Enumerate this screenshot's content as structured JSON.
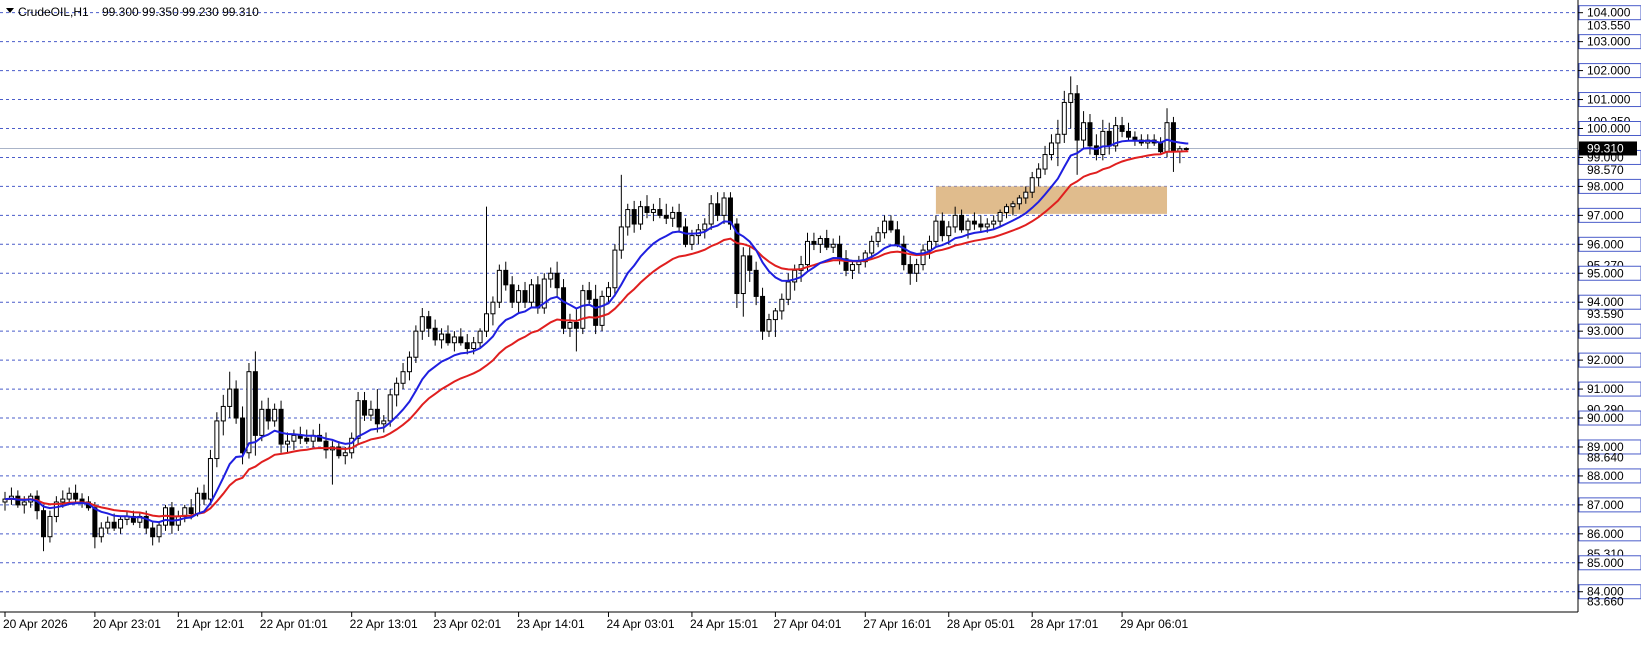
{
  "window": {
    "symbol_timeframe": "CrudeOIL,H1",
    "ohlc_readout": "99.300 99.350 99.230 99.310"
  },
  "colors": {
    "background": "#ffffff",
    "grid": "#4a5cc9",
    "ma_fast": "#1f1fe0",
    "ma_slow": "#e01f1f",
    "bid_line": "#aab4c8",
    "price_tag_bg": "#000000",
    "price_tag_text": "#ffffff",
    "zone_fill": "#deb887",
    "candle_bull": "#ffffff",
    "candle_bear": "#000000",
    "candle_outline": "#000000"
  },
  "chart_data": {
    "type": "candlestick",
    "symbol": "CrudeOIL",
    "timeframe": "H1",
    "current_price": "99.310",
    "y_range": [
      83.3,
      104.3
    ],
    "x_range_bars": [
      0,
      228
    ],
    "grid": "horizontal dashed at every 1.000",
    "price_labels": [
      {
        "value": 104.0,
        "text": "104.000",
        "boxed": true
      },
      {
        "value": 103.55,
        "text": "103.550",
        "boxed": false
      },
      {
        "value": 103.0,
        "text": "103.000",
        "boxed": true
      },
      {
        "value": 102.0,
        "text": "102.000",
        "boxed": true
      },
      {
        "value": 101.0,
        "text": "101.000",
        "boxed": true
      },
      {
        "value": 100.25,
        "text": "100.250",
        "boxed": false
      },
      {
        "value": 100.0,
        "text": "100.000",
        "boxed": true
      },
      {
        "value": 99.0,
        "text": "99.000",
        "boxed": true
      },
      {
        "value": 98.57,
        "text": "98.570",
        "boxed": false
      },
      {
        "value": 98.0,
        "text": "98.000",
        "boxed": true
      },
      {
        "value": 97.0,
        "text": "97.000",
        "boxed": true
      },
      {
        "value": 96.0,
        "text": "96.000",
        "boxed": true
      },
      {
        "value": 95.27,
        "text": "95.270",
        "boxed": false
      },
      {
        "value": 95.0,
        "text": "95.000",
        "boxed": true
      },
      {
        "value": 94.0,
        "text": "94.000",
        "boxed": true
      },
      {
        "value": 93.59,
        "text": "93.590",
        "boxed": false
      },
      {
        "value": 93.0,
        "text": "93.000",
        "boxed": true
      },
      {
        "value": 92.0,
        "text": "92.000",
        "boxed": true
      },
      {
        "value": 91.0,
        "text": "91.000",
        "boxed": true
      },
      {
        "value": 90.29,
        "text": "90.290",
        "boxed": false
      },
      {
        "value": 90.0,
        "text": "90.000",
        "boxed": true
      },
      {
        "value": 89.0,
        "text": "89.000",
        "boxed": true
      },
      {
        "value": 88.64,
        "text": "88.640",
        "boxed": false
      },
      {
        "value": 88.0,
        "text": "88.000",
        "boxed": true
      },
      {
        "value": 87.0,
        "text": "87.000",
        "boxed": true
      },
      {
        "value": 86.0,
        "text": "86.000",
        "boxed": true
      },
      {
        "value": 85.31,
        "text": "85.310",
        "boxed": false
      },
      {
        "value": 85.0,
        "text": "85.000",
        "boxed": true
      },
      {
        "value": 84.0,
        "text": "84.000",
        "boxed": true
      },
      {
        "value": 83.66,
        "text": "83.660",
        "boxed": false
      }
    ],
    "time_labels": [
      {
        "bar": 0,
        "text": "20 Apr 2026"
      },
      {
        "bar": 14,
        "text": "20 Apr 23:01"
      },
      {
        "bar": 27,
        "text": "21 Apr 12:01"
      },
      {
        "bar": 40,
        "text": "22 Apr 01:01"
      },
      {
        "bar": 54,
        "text": "22 Apr 13:01"
      },
      {
        "bar": 67,
        "text": "23 Apr 02:01"
      },
      {
        "bar": 80,
        "text": "23 Apr 14:01"
      },
      {
        "bar": 94,
        "text": "24 Apr 03:01"
      },
      {
        "bar": 107,
        "text": "24 Apr 15:01"
      },
      {
        "bar": 120,
        "text": "27 Apr 04:01"
      },
      {
        "bar": 134,
        "text": "27 Apr 16:01"
      },
      {
        "bar": 147,
        "text": "28 Apr 05:01"
      },
      {
        "bar": 160,
        "text": "28 Apr 17:01"
      },
      {
        "bar": 174,
        "text": "29 Apr 06:01"
      }
    ],
    "demand_zone": {
      "bar_start": 145,
      "bar_end": 181,
      "price_low": 97.05,
      "price_high": 98.0
    },
    "candles": [
      [
        87.1,
        87.45,
        86.8,
        87.2
      ],
      [
        87.2,
        87.6,
        87.0,
        87.3
      ],
      [
        87.3,
        87.5,
        86.9,
        87.0
      ],
      [
        87.0,
        87.3,
        86.7,
        87.1
      ],
      [
        87.1,
        87.4,
        86.9,
        87.3
      ],
      [
        87.3,
        87.5,
        86.5,
        86.8
      ],
      [
        86.8,
        87.0,
        85.4,
        85.9
      ],
      [
        85.9,
        86.8,
        85.7,
        86.6
      ],
      [
        86.6,
        87.3,
        86.4,
        87.1
      ],
      [
        87.1,
        87.5,
        86.9,
        87.2
      ],
      [
        87.2,
        87.6,
        87.0,
        87.4
      ],
      [
        87.4,
        87.7,
        87.1,
        87.2
      ],
      [
        87.2,
        87.4,
        86.9,
        87.1
      ],
      [
        87.1,
        87.3,
        86.8,
        86.9
      ],
      [
        86.9,
        87.1,
        85.5,
        85.9
      ],
      [
        85.9,
        86.4,
        85.7,
        86.2
      ],
      [
        86.2,
        86.6,
        86.0,
        86.4
      ],
      [
        86.4,
        86.7,
        86.1,
        86.2
      ],
      [
        86.2,
        86.6,
        86.0,
        86.5
      ],
      [
        86.5,
        86.8,
        86.3,
        86.6
      ],
      [
        86.6,
        86.8,
        86.3,
        86.4
      ],
      [
        86.4,
        86.7,
        86.2,
        86.6
      ],
      [
        86.6,
        86.8,
        86.0,
        86.2
      ],
      [
        86.2,
        86.4,
        85.6,
        85.9
      ],
      [
        85.9,
        86.4,
        85.7,
        86.3
      ],
      [
        86.3,
        87.0,
        86.1,
        86.9
      ],
      [
        86.9,
        87.1,
        86.0,
        86.3
      ],
      [
        86.3,
        86.8,
        86.1,
        86.6
      ],
      [
        86.6,
        87.0,
        86.4,
        86.9
      ],
      [
        86.9,
        87.2,
        86.5,
        86.7
      ],
      [
        86.7,
        87.6,
        86.6,
        87.4
      ],
      [
        87.4,
        87.7,
        87.0,
        87.2
      ],
      [
        87.2,
        88.9,
        87.0,
        88.6
      ],
      [
        88.6,
        90.2,
        88.3,
        89.9
      ],
      [
        89.9,
        90.8,
        89.4,
        90.4
      ],
      [
        90.4,
        91.6,
        90.0,
        91.0
      ],
      [
        91.0,
        91.3,
        89.8,
        90.0
      ],
      [
        90.0,
        90.4,
        88.4,
        88.8
      ],
      [
        88.8,
        91.9,
        88.6,
        91.6
      ],
      [
        91.6,
        92.3,
        88.7,
        89.4
      ],
      [
        89.4,
        90.6,
        89.2,
        90.3
      ],
      [
        90.3,
        90.7,
        89.6,
        89.9
      ],
      [
        89.9,
        90.5,
        89.7,
        90.3
      ],
      [
        90.3,
        90.6,
        88.8,
        89.1
      ],
      [
        89.1,
        89.5,
        88.8,
        89.2
      ],
      [
        89.2,
        89.6,
        88.9,
        89.4
      ],
      [
        89.4,
        89.7,
        89.1,
        89.3
      ],
      [
        89.3,
        89.6,
        89.1,
        89.2
      ],
      [
        89.2,
        89.6,
        89.0,
        89.4
      ],
      [
        89.4,
        89.8,
        89.2,
        89.2
      ],
      [
        89.2,
        89.5,
        88.6,
        88.9
      ],
      [
        88.9,
        89.2,
        87.7,
        89.0
      ],
      [
        89.0,
        89.2,
        88.6,
        88.7
      ],
      [
        88.7,
        89.0,
        88.4,
        88.8
      ],
      [
        88.8,
        89.5,
        88.6,
        89.3
      ],
      [
        89.3,
        90.9,
        89.1,
        90.6
      ],
      [
        90.6,
        90.9,
        89.9,
        90.1
      ],
      [
        90.1,
        90.6,
        89.9,
        90.3
      ],
      [
        90.3,
        91.0,
        89.5,
        89.8
      ],
      [
        89.8,
        90.1,
        89.5,
        89.9
      ],
      [
        89.9,
        91.0,
        89.7,
        90.8
      ],
      [
        90.8,
        91.4,
        90.4,
        91.2
      ],
      [
        91.2,
        91.9,
        91.0,
        91.6
      ],
      [
        91.6,
        92.3,
        91.3,
        92.1
      ],
      [
        92.1,
        93.2,
        91.9,
        93.0
      ],
      [
        93.0,
        93.8,
        92.7,
        93.5
      ],
      [
        93.5,
        93.7,
        92.8,
        93.1
      ],
      [
        93.1,
        93.4,
        92.5,
        92.7
      ],
      [
        92.7,
        93.1,
        92.4,
        92.9
      ],
      [
        92.9,
        93.2,
        92.5,
        92.6
      ],
      [
        92.6,
        93.0,
        92.3,
        92.8
      ],
      [
        92.8,
        93.1,
        92.5,
        92.6
      ],
      [
        92.6,
        92.9,
        92.2,
        92.4
      ],
      [
        92.4,
        92.8,
        92.2,
        92.6
      ],
      [
        92.6,
        93.1,
        92.4,
        93.0
      ],
      [
        93.0,
        97.3,
        92.8,
        93.6
      ],
      [
        93.6,
        94.2,
        93.2,
        94.0
      ],
      [
        94.0,
        95.3,
        93.8,
        95.1
      ],
      [
        95.1,
        95.4,
        94.4,
        94.6
      ],
      [
        94.6,
        94.9,
        93.8,
        94.0
      ],
      [
        94.0,
        94.6,
        93.6,
        94.4
      ],
      [
        94.4,
        94.7,
        93.8,
        94.0
      ],
      [
        94.0,
        94.8,
        93.8,
        94.6
      ],
      [
        94.6,
        94.9,
        93.6,
        93.8
      ],
      [
        93.8,
        95.0,
        93.6,
        94.8
      ],
      [
        94.8,
        95.2,
        94.5,
        95.0
      ],
      [
        95.0,
        95.4,
        94.2,
        94.5
      ],
      [
        94.5,
        94.8,
        92.9,
        93.1
      ],
      [
        93.1,
        93.6,
        92.8,
        93.3
      ],
      [
        93.3,
        93.8,
        92.3,
        93.1
      ],
      [
        93.1,
        94.6,
        92.9,
        94.4
      ],
      [
        94.4,
        94.7,
        93.9,
        94.1
      ],
      [
        94.1,
        94.6,
        92.9,
        93.2
      ],
      [
        93.2,
        94.4,
        93.0,
        94.2
      ],
      [
        94.2,
        94.7,
        94.0,
        94.5
      ],
      [
        94.5,
        96.0,
        94.2,
        95.8
      ],
      [
        95.8,
        98.4,
        95.5,
        96.6
      ],
      [
        96.6,
        97.4,
        96.3,
        97.2
      ],
      [
        97.2,
        97.5,
        96.4,
        96.7
      ],
      [
        96.7,
        97.5,
        96.5,
        97.3
      ],
      [
        97.3,
        97.7,
        96.9,
        97.1
      ],
      [
        97.1,
        97.4,
        96.8,
        97.2
      ],
      [
        97.2,
        97.6,
        96.9,
        97.0
      ],
      [
        97.0,
        97.4,
        96.7,
        96.9
      ],
      [
        96.9,
        97.3,
        96.6,
        97.1
      ],
      [
        97.1,
        97.4,
        96.4,
        96.6
      ],
      [
        96.6,
        96.9,
        95.9,
        96.0
      ],
      [
        96.0,
        96.5,
        95.8,
        96.3
      ],
      [
        96.3,
        96.7,
        96.0,
        96.5
      ],
      [
        96.5,
        96.9,
        96.2,
        96.7
      ],
      [
        96.7,
        97.7,
        96.5,
        97.4
      ],
      [
        97.4,
        97.8,
        96.8,
        97.0
      ],
      [
        97.0,
        97.8,
        96.7,
        97.6
      ],
      [
        97.6,
        97.8,
        96.5,
        96.7
      ],
      [
        96.7,
        96.9,
        93.8,
        94.3
      ],
      [
        94.3,
        95.9,
        93.5,
        95.6
      ],
      [
        95.6,
        95.9,
        94.7,
        95.1
      ],
      [
        95.1,
        95.4,
        93.9,
        94.2
      ],
      [
        94.2,
        94.5,
        92.7,
        93.0
      ],
      [
        93.0,
        93.6,
        92.8,
        93.4
      ],
      [
        93.4,
        93.8,
        92.8,
        93.7
      ],
      [
        93.7,
        94.3,
        93.4,
        94.1
      ],
      [
        94.1,
        95.0,
        93.9,
        94.7
      ],
      [
        94.7,
        95.3,
        94.4,
        95.1
      ],
      [
        95.1,
        95.6,
        94.7,
        95.3
      ],
      [
        95.3,
        96.4,
        95.1,
        96.1
      ],
      [
        96.1,
        96.4,
        95.8,
        96.0
      ],
      [
        96.0,
        96.3,
        95.7,
        96.2
      ],
      [
        96.2,
        96.5,
        95.8,
        95.9
      ],
      [
        95.9,
        96.2,
        95.7,
        96.0
      ],
      [
        96.0,
        96.3,
        95.3,
        95.5
      ],
      [
        95.5,
        95.8,
        94.9,
        95.1
      ],
      [
        95.1,
        95.4,
        94.8,
        95.3
      ],
      [
        95.3,
        95.6,
        95.0,
        95.4
      ],
      [
        95.4,
        95.8,
        95.2,
        95.7
      ],
      [
        95.7,
        96.3,
        95.5,
        96.1
      ],
      [
        96.1,
        96.6,
        95.9,
        96.4
      ],
      [
        96.4,
        97.0,
        96.2,
        96.8
      ],
      [
        96.8,
        97.0,
        96.4,
        96.5
      ],
      [
        96.5,
        96.8,
        95.9,
        96.0
      ],
      [
        96.0,
        96.3,
        95.1,
        95.3
      ],
      [
        95.3,
        95.6,
        94.6,
        95.0
      ],
      [
        95.0,
        95.5,
        94.7,
        95.3
      ],
      [
        95.3,
        96.0,
        95.1,
        95.8
      ],
      [
        95.8,
        96.3,
        95.5,
        96.1
      ],
      [
        96.1,
        97.0,
        95.9,
        96.8
      ],
      [
        96.8,
        97.1,
        96.1,
        96.3
      ],
      [
        96.3,
        96.8,
        96.0,
        96.6
      ],
      [
        96.6,
        97.3,
        96.4,
        97.0
      ],
      [
        97.0,
        97.2,
        96.4,
        96.5
      ],
      [
        96.5,
        96.9,
        96.2,
        96.8
      ],
      [
        96.8,
        97.1,
        96.5,
        96.7
      ],
      [
        96.7,
        97.0,
        96.4,
        96.6
      ],
      [
        96.6,
        96.9,
        96.4,
        96.7
      ],
      [
        96.7,
        97.0,
        96.5,
        96.8
      ],
      [
        96.8,
        97.2,
        96.6,
        97.1
      ],
      [
        97.1,
        97.4,
        96.9,
        97.3
      ],
      [
        97.3,
        97.5,
        97.0,
        97.4
      ],
      [
        97.4,
        97.7,
        97.2,
        97.6
      ],
      [
        97.6,
        98.0,
        97.4,
        97.8
      ],
      [
        97.8,
        98.5,
        97.6,
        98.3
      ],
      [
        98.3,
        98.8,
        98.0,
        98.6
      ],
      [
        98.6,
        99.4,
        98.4,
        99.1
      ],
      [
        99.1,
        99.8,
        98.9,
        99.5
      ],
      [
        99.5,
        100.3,
        98.7,
        99.8
      ],
      [
        99.8,
        101.3,
        99.5,
        100.9
      ],
      [
        100.9,
        101.8,
        100.0,
        101.2
      ],
      [
        101.2,
        101.5,
        98.4,
        99.6
      ],
      [
        99.6,
        100.6,
        99.3,
        100.2
      ],
      [
        100.2,
        100.5,
        99.1,
        99.4
      ],
      [
        99.4,
        99.8,
        98.9,
        99.1
      ],
      [
        99.1,
        100.3,
        98.9,
        99.9
      ],
      [
        99.9,
        100.2,
        99.1,
        99.4
      ],
      [
        99.4,
        100.4,
        99.2,
        100.1
      ],
      [
        100.1,
        100.4,
        99.7,
        99.9
      ],
      [
        99.9,
        100.2,
        99.6,
        99.7
      ],
      [
        99.7,
        99.9,
        99.4,
        99.6
      ],
      [
        99.6,
        99.8,
        99.4,
        99.5
      ],
      [
        99.5,
        99.8,
        99.3,
        99.6
      ],
      [
        99.6,
        99.8,
        99.4,
        99.5
      ],
      [
        99.5,
        99.7,
        99.1,
        99.2
      ],
      [
        99.2,
        100.7,
        99.0,
        100.2
      ],
      [
        100.2,
        100.4,
        98.5,
        99.2
      ],
      [
        99.2,
        99.4,
        98.8,
        99.3
      ],
      [
        99.3,
        99.35,
        99.23,
        99.31
      ]
    ],
    "series": [
      {
        "name": "",
        "color": "#1f1fe0",
        "values": []
      },
      {
        "name": "",
        "color": "#e01f1f",
        "values": []
      }
    ]
  }
}
